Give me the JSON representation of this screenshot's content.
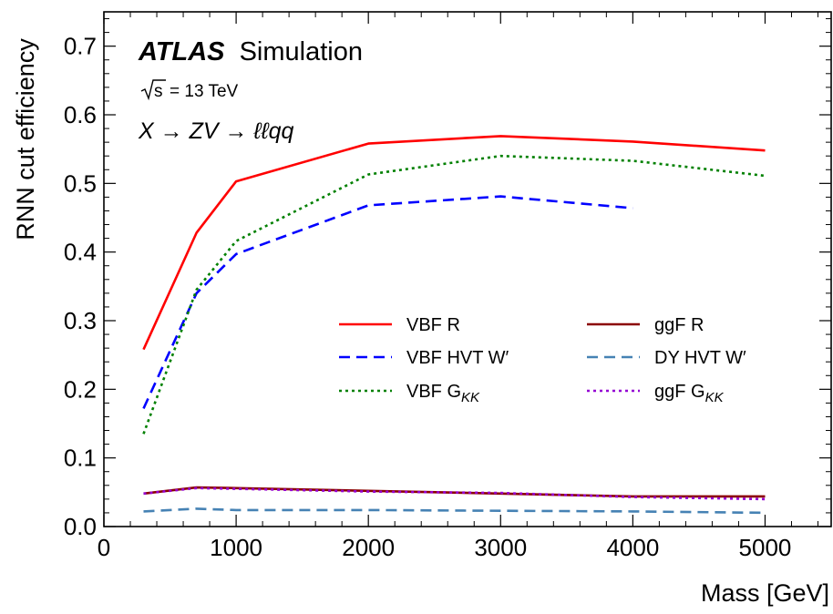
{
  "chart_data": {
    "type": "line",
    "xlabel": "Mass [GeV]",
    "ylabel": "RNN cut efficiency",
    "xlim": [
      0,
      5500
    ],
    "ylim": [
      0.0,
      0.75
    ],
    "xticks": [
      0,
      1000,
      2000,
      3000,
      4000,
      5000
    ],
    "xtick_labels": [
      "0",
      "1000",
      "2000",
      "3000",
      "4000",
      "5000"
    ],
    "yticks": [
      0.0,
      0.1,
      0.2,
      0.3,
      0.4,
      0.5,
      0.6,
      0.7
    ],
    "ytick_labels": [
      "0.0",
      "0.1",
      "0.2",
      "0.3",
      "0.4",
      "0.5",
      "0.6",
      "0.7"
    ],
    "annotations": {
      "atlas": "ATLAS",
      "simulation": "Simulation",
      "energy": "= 13 TeV",
      "energy_sqrt": "s",
      "process": "X → ZV → ℓℓqq"
    },
    "legend_position": "center-right",
    "grid": false,
    "series": [
      {
        "name": "VBF R",
        "color": "#ff0000",
        "style": "solid",
        "x": [
          300,
          700,
          1000,
          2000,
          3000,
          4000,
          5000
        ],
        "y": [
          0.258,
          0.428,
          0.503,
          0.558,
          0.569,
          0.561,
          0.548
        ]
      },
      {
        "name": "VBF HVT W′",
        "color": "#0000ff",
        "style": "dashed",
        "x": [
          300,
          700,
          1000,
          2000,
          3000,
          4000
        ],
        "y": [
          0.172,
          0.34,
          0.397,
          0.468,
          0.481,
          0.464
        ]
      },
      {
        "name": "VBF G",
        "name_sub": "KK",
        "color": "#008000",
        "style": "dotted",
        "x": [
          300,
          700,
          1000,
          2000,
          3000,
          4000,
          5000
        ],
        "y": [
          0.135,
          0.345,
          0.416,
          0.513,
          0.54,
          0.533,
          0.511
        ]
      },
      {
        "name": "ggF R",
        "color": "#8b0000",
        "style": "solid",
        "x": [
          300,
          700,
          1000,
          2000,
          3000,
          4000,
          5000
        ],
        "y": [
          0.048,
          0.057,
          0.056,
          0.052,
          0.048,
          0.044,
          0.044
        ]
      },
      {
        "name": "DY HVT W′",
        "color": "#4682b4",
        "style": "dashed",
        "x": [
          300,
          700,
          1000,
          2000,
          3000,
          4000,
          5000
        ],
        "y": [
          0.022,
          0.026,
          0.024,
          0.024,
          0.023,
          0.022,
          0.02
        ]
      },
      {
        "name": "ggF G",
        "name_sub": "KK",
        "color": "#9400d3",
        "style": "dotted",
        "x": [
          300,
          700,
          1000,
          2000,
          3000,
          4000,
          5000
        ],
        "y": [
          0.048,
          0.056,
          0.055,
          0.051,
          0.049,
          0.043,
          0.04
        ]
      }
    ]
  }
}
